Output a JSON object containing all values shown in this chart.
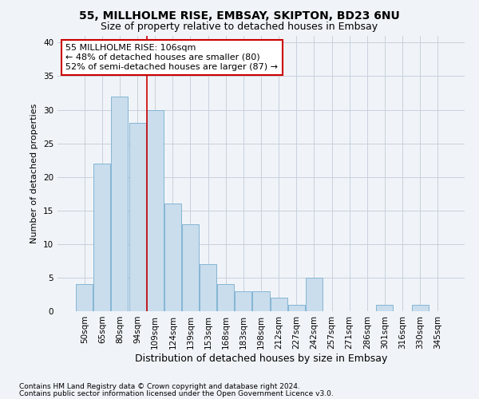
{
  "title1": "55, MILLHOLME RISE, EMBSAY, SKIPTON, BD23 6NU",
  "title2": "Size of property relative to detached houses in Embsay",
  "xlabel": "Distribution of detached houses by size in Embsay",
  "ylabel": "Number of detached properties",
  "categories": [
    "50sqm",
    "65sqm",
    "80sqm",
    "94sqm",
    "109sqm",
    "124sqm",
    "139sqm",
    "153sqm",
    "168sqm",
    "183sqm",
    "198sqm",
    "212sqm",
    "227sqm",
    "242sqm",
    "257sqm",
    "271sqm",
    "286sqm",
    "301sqm",
    "316sqm",
    "330sqm",
    "345sqm"
  ],
  "values": [
    4,
    22,
    32,
    28,
    30,
    16,
    13,
    7,
    4,
    3,
    3,
    2,
    1,
    5,
    0,
    0,
    0,
    1,
    0,
    1,
    0
  ],
  "bar_color": "#c9dded",
  "bar_edge_color": "#85b5d4",
  "grid_color": "#c8d0dc",
  "vline_color": "#cc0000",
  "vline_x_idx": 3.55,
  "annotation_title": "55 MILLHOLME RISE: 106sqm",
  "annotation_line1": "← 48% of detached houses are smaller (80)",
  "annotation_line2": "52% of semi-detached houses are larger (87) →",
  "annotation_box_edgecolor": "#cc0000",
  "footer1": "Contains HM Land Registry data © Crown copyright and database right 2024.",
  "footer2": "Contains public sector information licensed under the Open Government Licence v3.0.",
  "ylim": [
    0,
    41
  ],
  "yticks": [
    0,
    5,
    10,
    15,
    20,
    25,
    30,
    35,
    40
  ],
  "background_color": "#f0f4f8",
  "title1_fontsize": 10,
  "title2_fontsize": 9,
  "xlabel_fontsize": 9,
  "ylabel_fontsize": 8,
  "tick_fontsize": 7.5,
  "ann_fontsize": 8,
  "footer_fontsize": 6.5
}
